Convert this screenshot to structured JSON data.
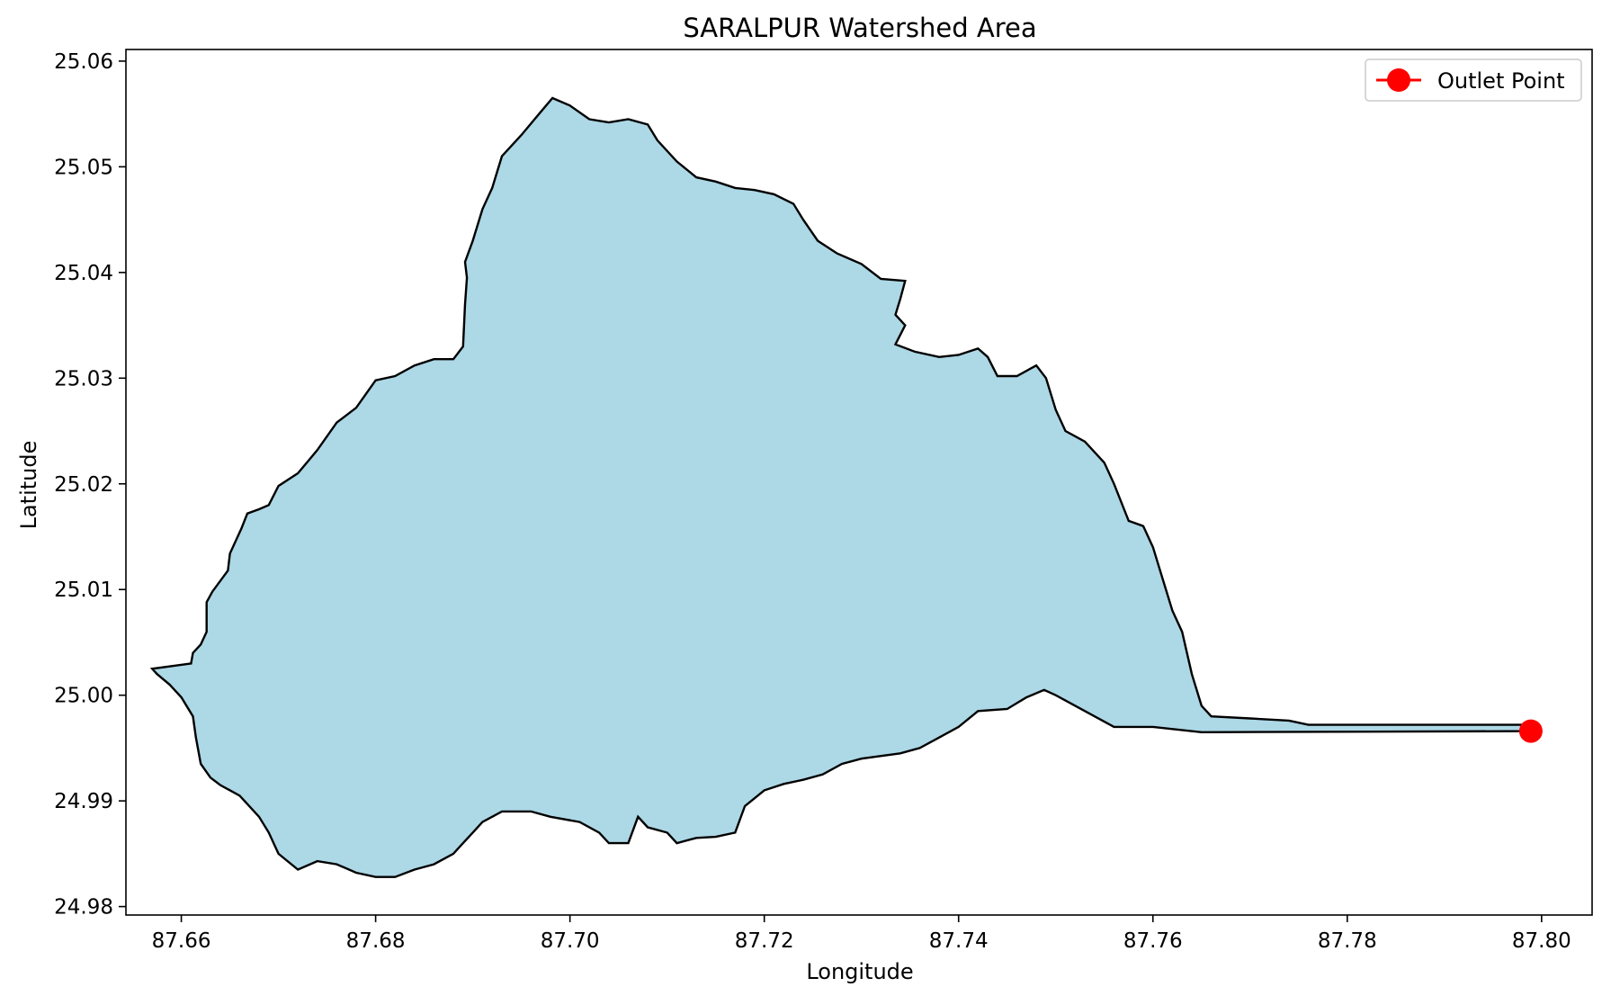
{
  "chart_data": {
    "type": "area",
    "title": "SARALPUR Watershed Area",
    "xlabel": "Longitude",
    "ylabel": "Latitude",
    "xlim": [
      87.6543,
      87.8052
    ],
    "ylim": [
      24.9792,
      25.0611
    ],
    "x_ticks": [
      "87.66",
      "87.68",
      "87.70",
      "87.72",
      "87.74",
      "87.76",
      "87.78",
      "87.80"
    ],
    "y_ticks": [
      "24.98",
      "24.99",
      "25.00",
      "25.01",
      "25.02",
      "25.03",
      "25.04",
      "25.05",
      "25.06"
    ],
    "grid": false,
    "legend": {
      "position": "top-right",
      "entries": [
        "Outlet Point"
      ]
    },
    "series": [
      {
        "type": "polygon",
        "color": "#add8e6",
        "edge_color": "#000000",
        "points": [
          [
            87.661,
            25.003
          ],
          [
            87.6612,
            25.004
          ],
          [
            87.662,
            25.0048
          ],
          [
            87.6626,
            25.006
          ],
          [
            87.6626,
            25.0088
          ],
          [
            87.6632,
            25.0098
          ],
          [
            87.6648,
            25.0118
          ],
          [
            87.665,
            25.0134
          ],
          [
            87.6662,
            25.0158
          ],
          [
            87.6668,
            25.0172
          ],
          [
            87.668,
            25.0176
          ],
          [
            87.669,
            25.018
          ],
          [
            87.67,
            25.0198
          ],
          [
            87.672,
            25.021
          ],
          [
            87.674,
            25.0232
          ],
          [
            87.676,
            25.0258
          ],
          [
            87.678,
            25.0272
          ],
          [
            87.68,
            25.0298
          ],
          [
            87.682,
            25.0302
          ],
          [
            87.684,
            25.0312
          ],
          [
            87.686,
            25.0318
          ],
          [
            87.688,
            25.0318
          ],
          [
            87.689,
            25.033
          ],
          [
            87.6892,
            25.037
          ],
          [
            87.6894,
            25.0395
          ],
          [
            87.6892,
            25.041
          ],
          [
            87.69,
            25.043
          ],
          [
            87.691,
            25.046
          ],
          [
            87.692,
            25.048
          ],
          [
            87.693,
            25.051
          ],
          [
            87.695,
            25.053
          ],
          [
            87.697,
            25.0552
          ],
          [
            87.6982,
            25.0565
          ],
          [
            87.7,
            25.0558
          ],
          [
            87.702,
            25.0545
          ],
          [
            87.704,
            25.0542
          ],
          [
            87.706,
            25.0545
          ],
          [
            87.708,
            25.054
          ],
          [
            87.709,
            25.0525
          ],
          [
            87.711,
            25.0505
          ],
          [
            87.713,
            25.049
          ],
          [
            87.715,
            25.0486
          ],
          [
            87.717,
            25.048
          ],
          [
            87.719,
            25.0478
          ],
          [
            87.721,
            25.0474
          ],
          [
            87.723,
            25.0465
          ],
          [
            87.724,
            25.045
          ],
          [
            87.7255,
            25.043
          ],
          [
            87.7275,
            25.0418
          ],
          [
            87.73,
            25.0408
          ],
          [
            87.732,
            25.0394
          ],
          [
            87.7345,
            25.0392
          ],
          [
            87.734,
            25.0375
          ],
          [
            87.7335,
            25.036
          ],
          [
            87.7345,
            25.035
          ],
          [
            87.7335,
            25.0332
          ],
          [
            87.7355,
            25.0325
          ],
          [
            87.738,
            25.032
          ],
          [
            87.74,
            25.0322
          ],
          [
            87.742,
            25.0328
          ],
          [
            87.743,
            25.032
          ],
          [
            87.744,
            25.0302
          ],
          [
            87.746,
            25.0302
          ],
          [
            87.748,
            25.0312
          ],
          [
            87.749,
            25.03
          ],
          [
            87.75,
            25.027
          ],
          [
            87.751,
            25.025
          ],
          [
            87.753,
            25.024
          ],
          [
            87.755,
            25.022
          ],
          [
            87.756,
            25.02
          ],
          [
            87.7575,
            25.0165
          ],
          [
            87.759,
            25.016
          ],
          [
            87.76,
            25.014
          ],
          [
            87.761,
            25.011
          ],
          [
            87.762,
            25.008
          ],
          [
            87.763,
            25.006
          ],
          [
            87.7635,
            25.004
          ],
          [
            87.764,
            25.002
          ],
          [
            87.765,
            24.999
          ],
          [
            87.766,
            24.998
          ],
          [
            87.77,
            24.9978
          ],
          [
            87.774,
            24.9976
          ],
          [
            87.776,
            24.9972
          ],
          [
            87.7988,
            24.9972
          ],
          [
            87.7988,
            24.9966
          ],
          [
            87.765,
            24.9965
          ],
          [
            87.76,
            24.997
          ],
          [
            87.756,
            24.997
          ],
          [
            87.754,
            24.998
          ],
          [
            87.752,
            24.999
          ],
          [
            87.75,
            25.0
          ],
          [
            87.7488,
            25.0005
          ],
          [
            87.747,
            24.9998
          ],
          [
            87.745,
            24.9987
          ],
          [
            87.742,
            24.9985
          ],
          [
            87.74,
            24.997
          ],
          [
            87.738,
            24.996
          ],
          [
            87.736,
            24.995
          ],
          [
            87.734,
            24.9945
          ],
          [
            87.73,
            24.994
          ],
          [
            87.728,
            24.9935
          ],
          [
            87.726,
            24.9925
          ],
          [
            87.724,
            24.992
          ],
          [
            87.722,
            24.9916
          ],
          [
            87.72,
            24.991
          ],
          [
            87.718,
            24.9895
          ],
          [
            87.717,
            24.987
          ],
          [
            87.715,
            24.9866
          ],
          [
            87.713,
            24.9865
          ],
          [
            87.711,
            24.986
          ],
          [
            87.71,
            24.987
          ],
          [
            87.708,
            24.9875
          ],
          [
            87.707,
            24.9885
          ],
          [
            87.706,
            24.986
          ],
          [
            87.704,
            24.986
          ],
          [
            87.703,
            24.987
          ],
          [
            87.701,
            24.988
          ],
          [
            87.698,
            24.9885
          ],
          [
            87.696,
            24.989
          ],
          [
            87.693,
            24.989
          ],
          [
            87.691,
            24.988
          ],
          [
            87.69,
            24.987
          ],
          [
            87.689,
            24.986
          ],
          [
            87.688,
            24.985
          ],
          [
            87.686,
            24.984
          ],
          [
            87.684,
            24.9835
          ],
          [
            87.682,
            24.9828
          ],
          [
            87.68,
            24.9828
          ],
          [
            87.678,
            24.9832
          ],
          [
            87.676,
            24.984
          ],
          [
            87.674,
            24.9843
          ],
          [
            87.672,
            24.9835
          ],
          [
            87.67,
            24.985
          ],
          [
            87.669,
            24.987
          ],
          [
            87.668,
            24.9885
          ],
          [
            87.666,
            24.9905
          ],
          [
            87.664,
            24.9915
          ],
          [
            87.663,
            24.9922
          ],
          [
            87.662,
            24.9935
          ],
          [
            87.6615,
            24.996
          ],
          [
            87.6612,
            24.998
          ],
          [
            87.66,
            24.9998
          ],
          [
            87.6588,
            25.001
          ],
          [
            87.6575,
            25.002
          ],
          [
            87.657,
            25.0025
          ]
        ]
      },
      {
        "type": "point",
        "name": "Outlet Point",
        "color": "#ff0000",
        "x": 87.7989,
        "y": 24.9966
      }
    ]
  }
}
